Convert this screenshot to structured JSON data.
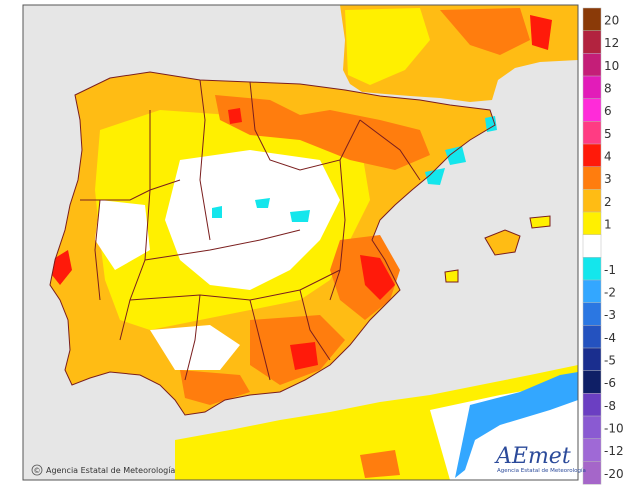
{
  "credit_text": "Agencia Estatal de Meteorología",
  "copyright_symbol": "©",
  "logo": {
    "text": "AEmet",
    "subtitle": "Agencia Estatal de Meteorología"
  },
  "legend": {
    "steps": [
      {
        "label": "20",
        "color": "#8a3a08"
      },
      {
        "label": "12",
        "color": "#b2233f"
      },
      {
        "label": "10",
        "color": "#c41e78"
      },
      {
        "label": "8",
        "color": "#e21cb9"
      },
      {
        "label": "6",
        "color": "#ff2bd9"
      },
      {
        "label": "5",
        "color": "#ff3c83"
      },
      {
        "label": "4",
        "color": "#ff1a0a"
      },
      {
        "label": "3",
        "color": "#ff7d0e"
      },
      {
        "label": "2",
        "color": "#ffbc14"
      },
      {
        "label": "1",
        "color": "#fff000"
      },
      {
        "label": "",
        "color": "#ffffff"
      },
      {
        "label": "-1",
        "color": "#14e6ec"
      },
      {
        "label": "-2",
        "color": "#33a7ff"
      },
      {
        "label": "-3",
        "color": "#2b77e2"
      },
      {
        "label": "-4",
        "color": "#2452bf"
      },
      {
        "label": "-5",
        "color": "#1a2e8e"
      },
      {
        "label": "-6",
        "color": "#0f1f66"
      },
      {
        "label": "-8",
        "color": "#6b3fc2"
      },
      {
        "label": "-10",
        "color": "#8a5ad2"
      },
      {
        "label": "-12",
        "color": "#9f69d6"
      },
      {
        "label": "-20",
        "color": "#a566c9"
      }
    ]
  },
  "colors": {
    "sea": "#e6e6e6",
    "land": "#ffffff",
    "border": "#7a1e1e"
  }
}
